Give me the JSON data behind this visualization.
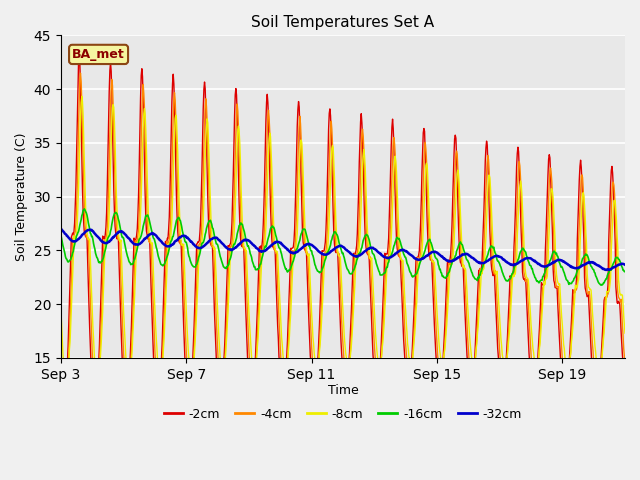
{
  "title": "Soil Temperatures Set A",
  "xlabel": "Time",
  "ylabel": "Soil Temperature (C)",
  "ylim": [
    15,
    45
  ],
  "yticks": [
    15,
    20,
    25,
    30,
    35,
    40,
    45
  ],
  "plot_bg_color": "#e8e8e8",
  "fig_bg_color": "#f0f0f0",
  "legend_labels": [
    "-2cm",
    "-4cm",
    "-8cm",
    "-16cm",
    "-32cm"
  ],
  "legend_colors": [
    "#dd0000",
    "#ff8800",
    "#eeee00",
    "#00cc00",
    "#0000cc"
  ],
  "line_widths": [
    1.0,
    1.0,
    1.0,
    1.2,
    1.8
  ],
  "annotation_text": "BA_met",
  "xtick_positions": [
    3,
    7,
    11,
    15,
    19
  ],
  "xtick_labels": [
    "Sep 3",
    "Sep 7",
    "Sep 11",
    "Sep 15",
    "Sep 19"
  ],
  "start_day": 3,
  "end_day": 21
}
